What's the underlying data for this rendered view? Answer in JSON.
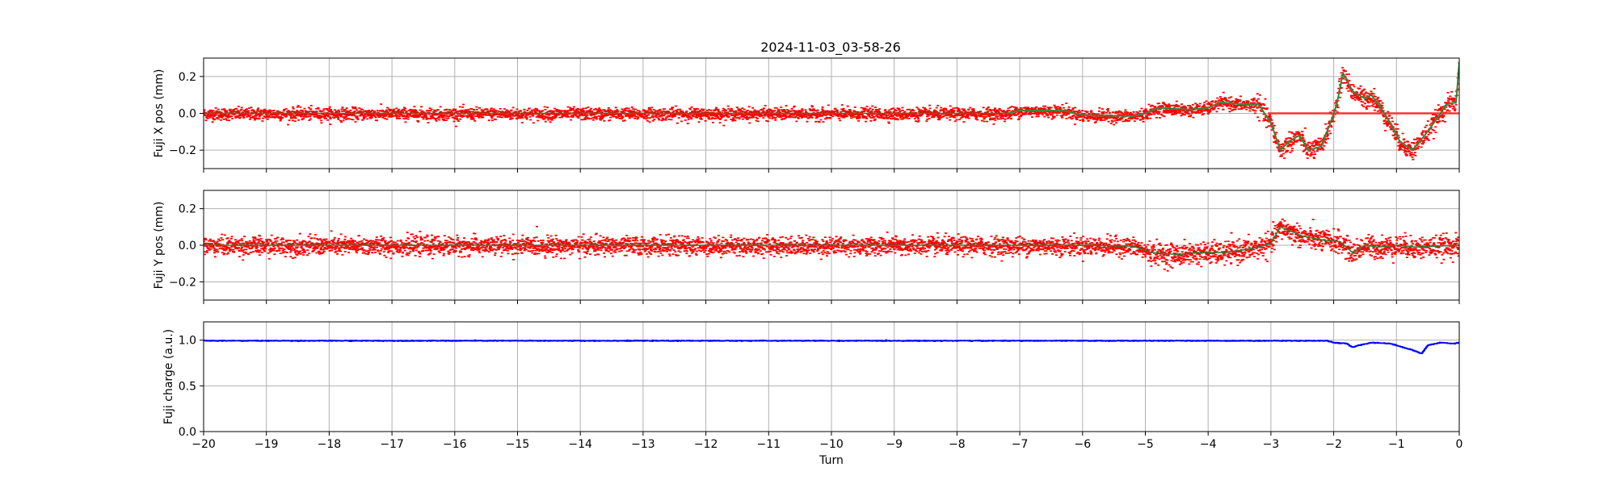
{
  "figure": {
    "title": "2024-11-03_03-58-26"
  },
  "chart_data": [
    {
      "type": "scatter",
      "id": "x-pos",
      "title": "2024-11-03_03-58-26",
      "xlabel": "",
      "ylabel": "Fuji X pos (mm)",
      "xlim": [
        -20,
        0
      ],
      "ylim": [
        -0.3,
        0.3
      ],
      "yticks": [
        -0.2,
        0.0,
        0.2
      ],
      "ytick_labels": [
        "−0.2",
        "0.0",
        "0.2"
      ],
      "grid": true,
      "show_xtick_labels": false,
      "colors": {
        "scatter": "#ff0000",
        "smooth": "#2e7d32",
        "zero": "#ff3333",
        "faint": "#7fbf7f"
      },
      "noise_amplitude": 0.03,
      "trend": [
        [
          -20,
          0.0
        ],
        [
          -7.2,
          0.0
        ],
        [
          -7.0,
          0.015
        ],
        [
          -6.3,
          0.015
        ],
        [
          -6.0,
          -0.01
        ],
        [
          -5.2,
          -0.015
        ],
        [
          -5.0,
          0.0
        ],
        [
          -4.8,
          0.03
        ],
        [
          -4.3,
          0.02
        ],
        [
          -4.0,
          0.03
        ],
        [
          -3.8,
          0.06
        ],
        [
          -3.5,
          0.05
        ],
        [
          -3.2,
          0.05
        ],
        [
          -3.0,
          -0.05
        ],
        [
          -2.85,
          -0.2
        ],
        [
          -2.7,
          -0.15
        ],
        [
          -2.55,
          -0.12
        ],
        [
          -2.4,
          -0.2
        ],
        [
          -2.2,
          -0.18
        ],
        [
          -2.05,
          -0.05
        ],
        [
          -1.95,
          0.05
        ],
        [
          -1.85,
          0.22
        ],
        [
          -1.7,
          0.12
        ],
        [
          -1.5,
          0.08
        ],
        [
          -1.4,
          0.1
        ],
        [
          -1.25,
          0.03
        ],
        [
          -1.1,
          -0.05
        ],
        [
          -0.95,
          -0.15
        ],
        [
          -0.75,
          -0.2
        ],
        [
          -0.55,
          -0.12
        ],
        [
          -0.4,
          -0.05
        ],
        [
          -0.2,
          0.05
        ],
        [
          -0.05,
          0.06
        ],
        [
          0,
          0.28
        ]
      ]
    },
    {
      "type": "scatter",
      "id": "y-pos",
      "xlabel": "",
      "ylabel": "Fuji Y pos (mm)",
      "xlim": [
        -20,
        0
      ],
      "ylim": [
        -0.3,
        0.3
      ],
      "yticks": [
        -0.2,
        0.0,
        0.2
      ],
      "ytick_labels": [
        "−0.2",
        "0.0",
        "0.2"
      ],
      "grid": true,
      "show_xtick_labels": false,
      "colors": {
        "scatter": "#ff0000",
        "smooth": "#2e7d32"
      },
      "noise_amplitude": 0.045,
      "trend": [
        [
          -20,
          0.0
        ],
        [
          -6.0,
          0.0
        ],
        [
          -5.2,
          -0.005
        ],
        [
          -4.9,
          -0.04
        ],
        [
          -4.5,
          -0.05
        ],
        [
          -4.2,
          -0.04
        ],
        [
          -3.8,
          -0.04
        ],
        [
          -3.5,
          -0.03
        ],
        [
          -3.2,
          -0.01
        ],
        [
          -3.0,
          0.01
        ],
        [
          -2.85,
          0.1
        ],
        [
          -2.7,
          0.08
        ],
        [
          -2.5,
          0.05
        ],
        [
          -2.2,
          0.03
        ],
        [
          -1.9,
          0.02
        ],
        [
          -1.7,
          -0.04
        ],
        [
          -1.5,
          0.0
        ],
        [
          -1.3,
          -0.01
        ],
        [
          -1.0,
          0.0
        ],
        [
          -0.7,
          -0.01
        ],
        [
          0,
          0.0
        ]
      ]
    },
    {
      "type": "scatter",
      "id": "charge",
      "xlabel": "Turn",
      "ylabel": "Fuji charge (a.u.)",
      "xlim": [
        -20,
        0
      ],
      "ylim": [
        0.0,
        1.2
      ],
      "yticks": [
        0.0,
        0.5,
        1.0
      ],
      "ytick_labels": [
        "0.0",
        "0.5",
        "1.0"
      ],
      "xticks": [
        -20,
        -19,
        -18,
        -17,
        -16,
        -15,
        -14,
        -13,
        -12,
        -11,
        -10,
        -9,
        -8,
        -7,
        -6,
        -5,
        -4,
        -3,
        -2,
        -1,
        0
      ],
      "xtick_labels": [
        "−20",
        "−19",
        "−18",
        "−17",
        "−16",
        "−15",
        "−14",
        "−13",
        "−12",
        "−11",
        "−10",
        "−9",
        "−8",
        "−7",
        "−6",
        "−5",
        "−4",
        "−3",
        "−2",
        "−1",
        "0"
      ],
      "grid": true,
      "show_xtick_labels": true,
      "colors": {
        "scatter": "#0000ff"
      },
      "noise_amplitude": 0.004,
      "trend": [
        [
          -20,
          1.0
        ],
        [
          -2.1,
          1.0
        ],
        [
          -2.0,
          0.98
        ],
        [
          -1.8,
          0.97
        ],
        [
          -1.7,
          0.93
        ],
        [
          -1.6,
          0.95
        ],
        [
          -1.4,
          0.98
        ],
        [
          -1.1,
          0.97
        ],
        [
          -0.9,
          0.93
        ],
        [
          -0.75,
          0.9
        ],
        [
          -0.6,
          0.86
        ],
        [
          -0.5,
          0.95
        ],
        [
          -0.3,
          0.98
        ],
        [
          -0.1,
          0.97
        ],
        [
          0,
          0.98
        ]
      ]
    }
  ]
}
